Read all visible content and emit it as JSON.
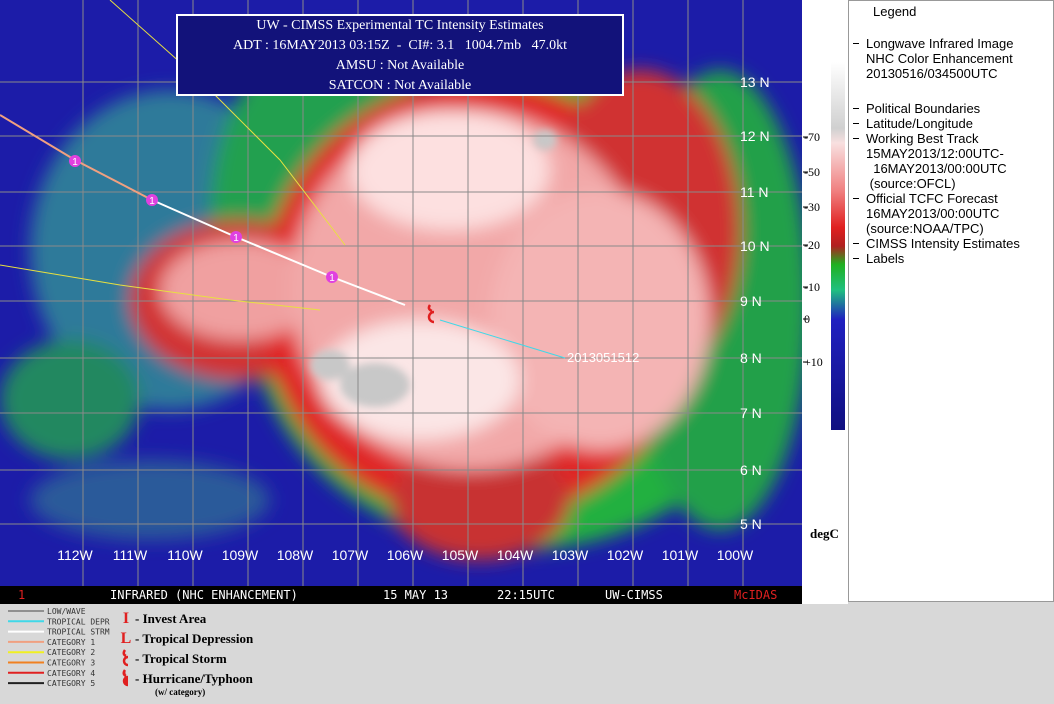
{
  "header": {
    "title": "UW - CIMSS Experimental TC Intensity Estimates",
    "adt": "ADT : 16MAY2013 03:15Z  -  CI#: 3.1   1004.7mb   47.0kt",
    "amsu": "AMSU : Not Available",
    "satcon": "SATCON : Not Available"
  },
  "map": {
    "lat_labels": [
      "13 N",
      "12 N",
      "11 N",
      "10 N",
      "9 N",
      "8 N",
      "7 N",
      "6 N",
      "5 N"
    ],
    "lon_labels": [
      "112W",
      "111W",
      "110W",
      "109W",
      "108W",
      "107W",
      "106W",
      "105W",
      "104W",
      "103W",
      "102W",
      "101W",
      "100W"
    ],
    "track_label": "2013051512",
    "marker_labels": [
      "1",
      "1",
      "1",
      "1"
    ]
  },
  "status_bar": {
    "frame": "1",
    "product": "INFRARED (NHC ENHANCEMENT)",
    "date": "15 MAY 13",
    "time": "22:15UTC",
    "source": "UW-CIMSS",
    "software": "McIDAS"
  },
  "scale": {
    "ticks": [
      "-70",
      "-50",
      "-30",
      "-20",
      "-10",
      "0",
      "+10"
    ],
    "unit": "degC"
  },
  "legend": {
    "title": "Legend",
    "items": [
      {
        "lines": [
          "Longwave Infrared Image",
          "NHC Color Enhancement",
          "20130516/034500UTC"
        ]
      },
      {
        "lines": [
          "Political Boundaries"
        ]
      },
      {
        "lines": [
          "Latitude/Longitude"
        ]
      },
      {
        "lines": [
          "Working Best Track",
          "15MAY2013/12:00UTC-",
          "  16MAY2013/00:00UTC",
          " (source:OFCL)"
        ]
      },
      {
        "lines": [
          "Official TCFC Forecast",
          "16MAY2013/00:00UTC",
          "(source:NOAA/TPC)"
        ]
      },
      {
        "lines": [
          "CIMSS Intensity Estimates"
        ]
      },
      {
        "lines": [
          "Labels"
        ]
      }
    ]
  },
  "key": {
    "lines": [
      "LOW/WAVE",
      "TROPICAL DEPR",
      "TROPICAL STRM",
      "CATEGORY 1",
      "CATEGORY 2",
      "CATEGORY 3",
      "CATEGORY 4",
      "CATEGORY 5"
    ],
    "symbols": [
      {
        "symbol": "I",
        "text": "- Invest Area"
      },
      {
        "symbol": "L",
        "text": "- Tropical Depression"
      },
      {
        "text": "- Tropical Storm"
      },
      {
        "text": "- Hurricane/Typhoon",
        "note": "(w/ category)"
      }
    ]
  }
}
